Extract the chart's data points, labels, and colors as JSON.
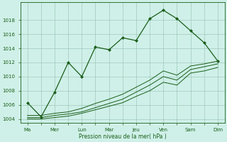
{
  "bg_color": "#cff0e8",
  "grid_color": "#a0c8bc",
  "line_color": "#1a5e1a",
  "xlabel": "Pression niveau de la mer( hPa )",
  "ylim": [
    1003.5,
    1020.5
  ],
  "yticks": [
    1004,
    1006,
    1008,
    1010,
    1012,
    1014,
    1016,
    1018
  ],
  "xtick_major": [
    0,
    2,
    4,
    6,
    8,
    10,
    12,
    14
  ],
  "xtick_major_labels": [
    "Ma",
    "Mer",
    "Lun",
    "Mar",
    "Jeu",
    "Ven",
    "Sam",
    "Dim"
  ],
  "xtick_minor": [
    1,
    3,
    5,
    7,
    9,
    11,
    13
  ],
  "xlim": [
    -0.5,
    14.5
  ],
  "series1_x": [
    0,
    1,
    2,
    3,
    4,
    5,
    6,
    7,
    8,
    9,
    10,
    11,
    12,
    13,
    14
  ],
  "series1_y": [
    1006.3,
    1004.3,
    1007.8,
    1012.0,
    1010.0,
    1014.2,
    1013.8,
    1015.5,
    1015.1,
    1018.2,
    1019.4,
    1018.2,
    1016.5,
    1014.8,
    1012.2
  ],
  "series2_x": [
    0,
    1,
    2,
    3,
    4,
    5,
    6,
    7,
    8,
    9,
    10,
    11,
    12,
    13,
    14
  ],
  "series2_y": [
    1004.5,
    1004.5,
    1004.8,
    1005.0,
    1005.5,
    1006.2,
    1006.8,
    1007.5,
    1008.5,
    1009.5,
    1010.8,
    1010.2,
    1011.5,
    1011.8,
    1012.2
  ],
  "series3_x": [
    0,
    1,
    2,
    3,
    4,
    5,
    6,
    7,
    8,
    9,
    10,
    11,
    12,
    13,
    14
  ],
  "series3_y": [
    1004.2,
    1004.2,
    1004.5,
    1004.7,
    1005.0,
    1005.6,
    1006.2,
    1006.8,
    1007.8,
    1008.8,
    1010.0,
    1009.5,
    1011.0,
    1011.4,
    1011.8
  ],
  "series4_x": [
    0,
    1,
    2,
    3,
    4,
    5,
    6,
    7,
    8,
    9,
    10,
    11,
    12,
    13,
    14
  ],
  "series4_y": [
    1004.0,
    1004.0,
    1004.2,
    1004.4,
    1004.8,
    1005.3,
    1005.8,
    1006.3,
    1007.2,
    1008.0,
    1009.2,
    1008.8,
    1010.5,
    1010.8,
    1011.3
  ]
}
